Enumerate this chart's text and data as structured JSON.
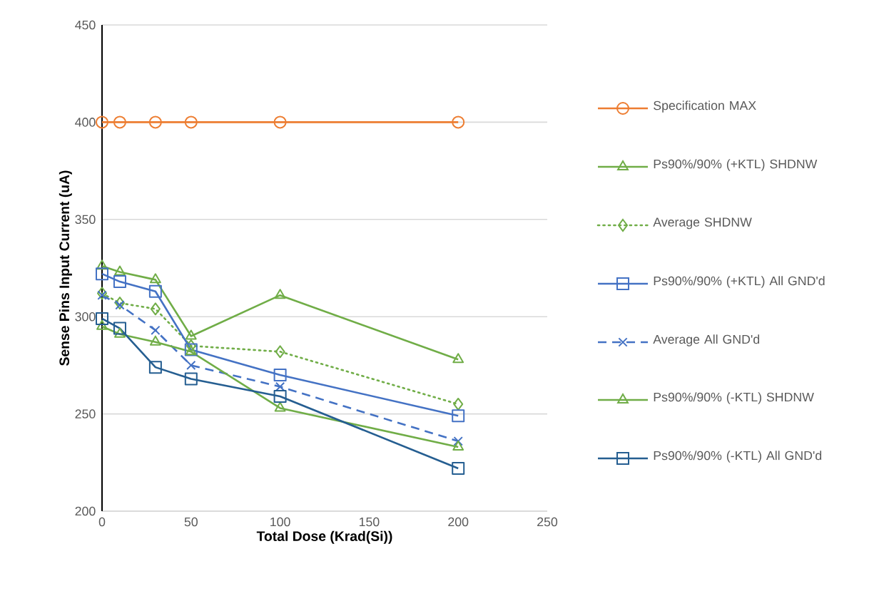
{
  "chart_data": {
    "type": "line",
    "xlabel": "Total Dose (Krad(Si))",
    "ylabel": "Sense Pins Input Current (uA)",
    "x": [
      0,
      10,
      30,
      50,
      100,
      200
    ],
    "xlim": [
      0,
      250
    ],
    "xticks": [
      0,
      50,
      100,
      150,
      200,
      250
    ],
    "ylim": [
      200,
      450
    ],
    "yticks": [
      200,
      250,
      300,
      350,
      400,
      450
    ],
    "grid": "y",
    "legend": "right",
    "series": [
      {
        "name": "Specification MAX",
        "color": "#ed7d31",
        "marker": "circle",
        "line_style": "solid",
        "values": [
          400,
          400,
          400,
          400,
          400,
          400
        ]
      },
      {
        "name": "Ps90%/90% (+KTL) SHDNW",
        "color": "#70ad47",
        "marker": "triangle",
        "line_style": "solid",
        "values": [
          326,
          323,
          319,
          290,
          311,
          278
        ]
      },
      {
        "name": "Average SHDNW",
        "color": "#70ad47",
        "marker": "diamond",
        "line_style": "dotted",
        "values": [
          312,
          307,
          304,
          285,
          282,
          255
        ]
      },
      {
        "name": "Ps90%/90% (+KTL) All GND'd",
        "color": "#4472c4",
        "marker": "square",
        "line_style": "solid",
        "values": [
          322,
          318,
          313,
          283,
          270,
          249
        ]
      },
      {
        "name": "Average All GND'd",
        "color": "#4472c4",
        "marker": "cross",
        "line_style": "dashed",
        "values": [
          311,
          306,
          293,
          275,
          264,
          236
        ]
      },
      {
        "name": "Ps90%/90% (-KTL) SHDNW",
        "color": "#70ad47",
        "marker": "triangle",
        "line_style": "solid",
        "values": [
          295,
          291,
          287,
          282,
          253,
          233
        ]
      },
      {
        "name": "Ps90%/90% (-KTL) All GND'd",
        "color": "#255e91",
        "marker": "square",
        "line_style": "solid",
        "values": [
          299,
          294,
          274,
          268,
          259,
          222
        ]
      }
    ]
  }
}
